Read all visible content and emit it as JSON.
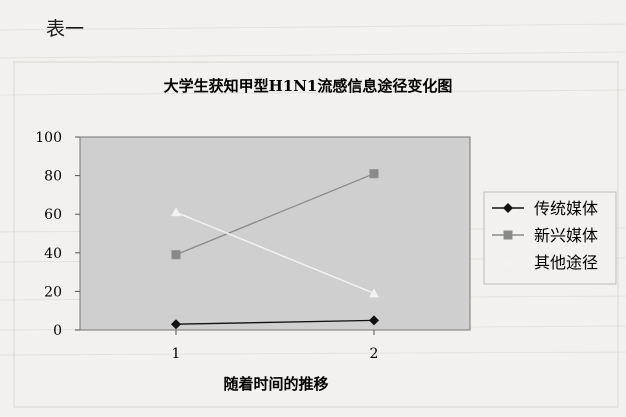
{
  "header": {
    "label": "表一"
  },
  "chart_data": {
    "type": "line",
    "title": "大学生获知甲型H1N1流感信息途径变化图",
    "xlabel": "随着时间的推移",
    "ylabel": "",
    "categories": [
      "1",
      "2"
    ],
    "ylim": [
      0,
      100
    ],
    "yticks": [
      0,
      20,
      40,
      60,
      80,
      100
    ],
    "grid": false,
    "legend_position": "right",
    "series": [
      {
        "name": "传统媒体",
        "values": [
          3,
          5
        ],
        "color": "#111111",
        "marker": "diamond"
      },
      {
        "name": "新兴媒体",
        "values": [
          39,
          81
        ],
        "color": "#8a8a8a",
        "marker": "square"
      },
      {
        "name": "其他途径",
        "values": [
          61,
          19
        ],
        "color": "#f2f2f2",
        "marker": "triangle"
      }
    ]
  },
  "colors": {
    "plot_background": "#cfcfcf",
    "page_background": "#f3f1ef"
  }
}
